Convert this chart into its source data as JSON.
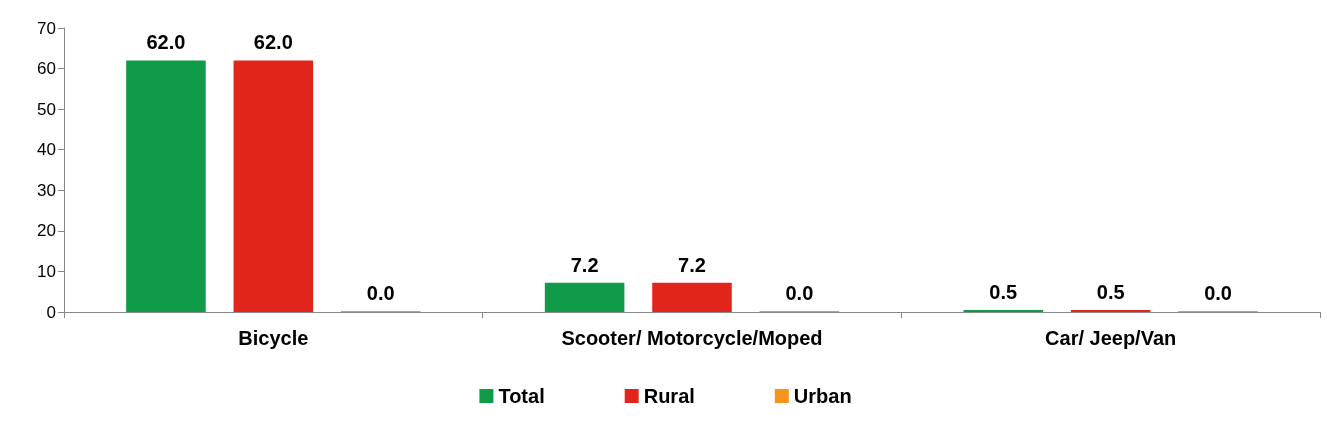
{
  "chart_data": {
    "type": "bar",
    "categories": [
      "Bicycle",
      "Scooter/ Motorcycle/Moped",
      "Car/ Jeep/Van"
    ],
    "series": [
      {
        "name": "Total",
        "color": "#0f9b48",
        "values": [
          62.0,
          7.2,
          0.5
        ],
        "value_labels": [
          "62.0",
          "7.2",
          "0.5"
        ]
      },
      {
        "name": "Rural",
        "color": "#e0261b",
        "values": [
          62.0,
          7.2,
          0.5
        ],
        "value_labels": [
          "62.0",
          "7.2",
          "0.5"
        ]
      },
      {
        "name": "Urban",
        "color": "#f7941d",
        "values": [
          0.0,
          0.0,
          0.0
        ],
        "value_labels": [
          "0.0",
          "0.0",
          "0.0"
        ]
      }
    ],
    "ylim": [
      0,
      70
    ],
    "yticks": [
      0,
      10,
      20,
      30,
      40,
      50,
      60,
      70
    ],
    "grid": false,
    "legend": "bottom"
  }
}
